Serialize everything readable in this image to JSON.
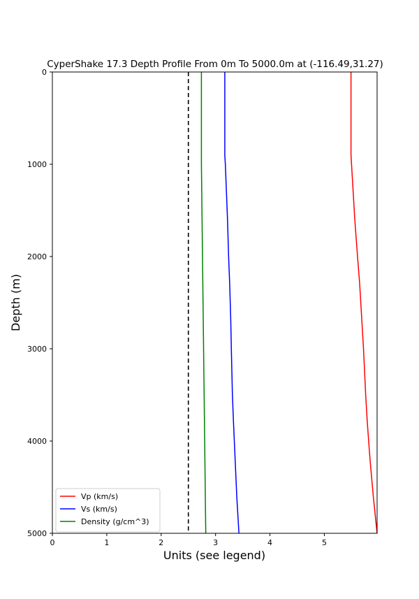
{
  "chart_data": {
    "type": "line",
    "title": "CyperShake 17.3 Depth Profile From 0m To 5000.0m at (-116.49,31.27)",
    "xlabel": "Units (see legend)",
    "ylabel": "Depth (m)",
    "xlim": [
      0,
      5.97
    ],
    "ylim": [
      5000,
      0
    ],
    "y_inverted": true,
    "grid": false,
    "legend_position": "lower-left",
    "x_ticks": [
      0,
      1,
      2,
      3,
      4,
      5
    ],
    "y_ticks": [
      0,
      1000,
      2000,
      3000,
      4000,
      5000
    ],
    "reference_line": {
      "x": 2.5,
      "style": "dashed",
      "color": "#000000"
    },
    "series": [
      {
        "name": "Vp (km/s)",
        "color": "#ff0000",
        "points": [
          [
            5.49,
            0
          ],
          [
            5.49,
            500
          ],
          [
            5.49,
            900
          ],
          [
            5.5,
            1000
          ],
          [
            5.53,
            1300
          ],
          [
            5.56,
            1600
          ],
          [
            5.61,
            2000
          ],
          [
            5.65,
            2300
          ],
          [
            5.69,
            2700
          ],
          [
            5.72,
            3000
          ],
          [
            5.76,
            3500
          ],
          [
            5.79,
            3800
          ],
          [
            5.84,
            4200
          ],
          [
            5.9,
            4600
          ],
          [
            5.97,
            5000
          ]
        ]
      },
      {
        "name": "Vs (km/s)",
        "color": "#0000ff",
        "points": [
          [
            3.17,
            0
          ],
          [
            3.17,
            500
          ],
          [
            3.17,
            900
          ],
          [
            3.18,
            1000
          ],
          [
            3.2,
            1300
          ],
          [
            3.22,
            1600
          ],
          [
            3.24,
            2000
          ],
          [
            3.26,
            2300
          ],
          [
            3.28,
            2700
          ],
          [
            3.29,
            3000
          ],
          [
            3.31,
            3500
          ],
          [
            3.33,
            3800
          ],
          [
            3.36,
            4200
          ],
          [
            3.39,
            4600
          ],
          [
            3.43,
            5000
          ]
        ]
      },
      {
        "name": "Density (g/cm^3)",
        "color": "#008000",
        "points": [
          [
            2.74,
            0
          ],
          [
            2.74,
            500
          ],
          [
            2.74,
            900
          ],
          [
            2.74,
            1000
          ],
          [
            2.75,
            1500
          ],
          [
            2.76,
            2000
          ],
          [
            2.77,
            2500
          ],
          [
            2.78,
            3000
          ],
          [
            2.79,
            3500
          ],
          [
            2.8,
            4000
          ],
          [
            2.81,
            4500
          ],
          [
            2.82,
            5000
          ]
        ]
      }
    ]
  }
}
